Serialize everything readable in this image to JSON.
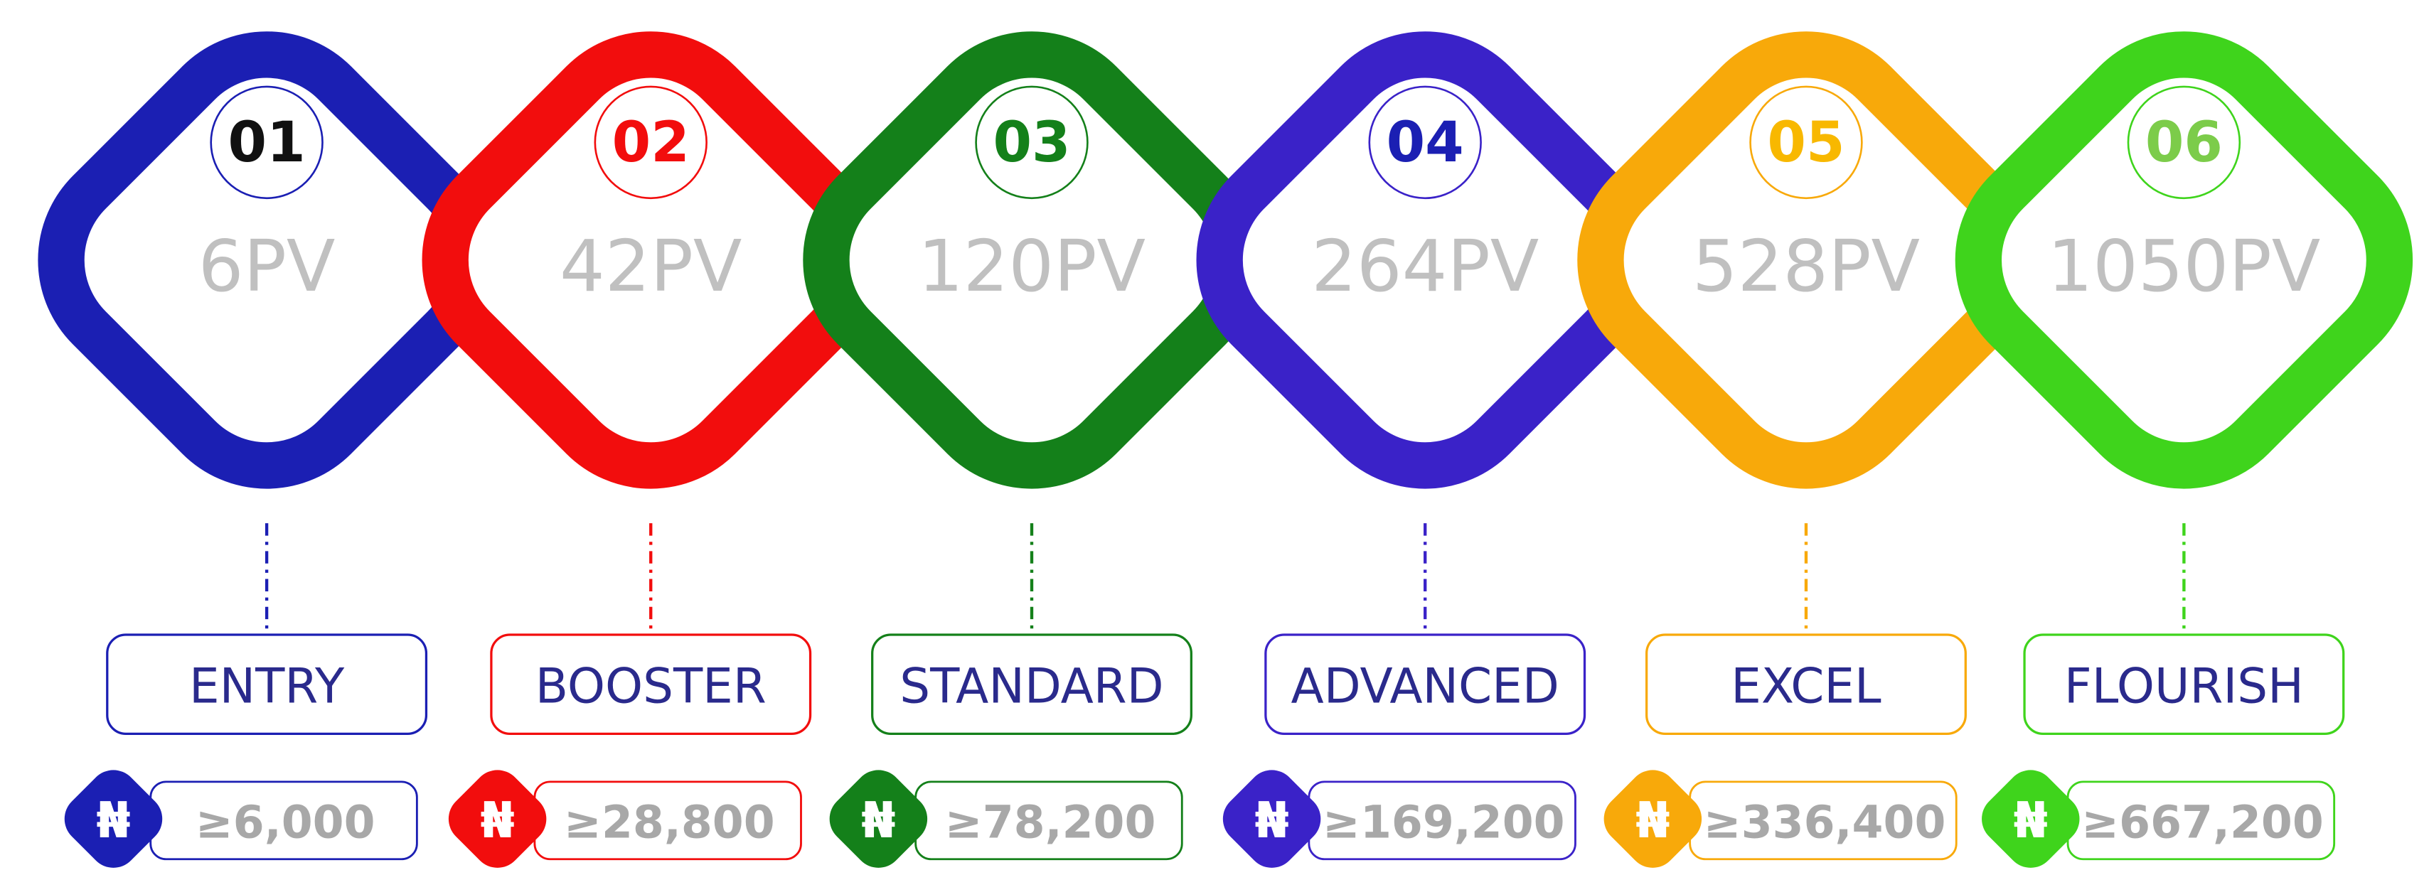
{
  "currency": "₦",
  "tiers": [
    {
      "number": "01",
      "pv": "6PV",
      "name": "ENTRY",
      "price": "≥6,000",
      "color": "#1b1fb3",
      "number_color": "#111111"
    },
    {
      "number": "02",
      "pv": "42PV",
      "name": "BOOSTER",
      "price": "≥28,800",
      "color": "#f20d0d",
      "number_color": "#f20d0d"
    },
    {
      "number": "03",
      "pv": "120PV",
      "name": "STANDARD",
      "price": "≥78,200",
      "color": "#14801a",
      "number_color": "#14801a"
    },
    {
      "number": "04",
      "pv": "264PV",
      "name": "ADVANCED",
      "price": "≥169,200",
      "color": "#3a22c8",
      "number_color": "#1b1fb3"
    },
    {
      "number": "05",
      "pv": "528PV",
      "name": "EXCEL",
      "price": "≥336,400",
      "color": "#f8a90a",
      "number_color": "#f8b800"
    },
    {
      "number": "06",
      "pv": "1050PV",
      "name": "FLOURISH",
      "price": "≥667,200",
      "color": "#3fd41c",
      "number_color": "#7ccc4a"
    }
  ]
}
